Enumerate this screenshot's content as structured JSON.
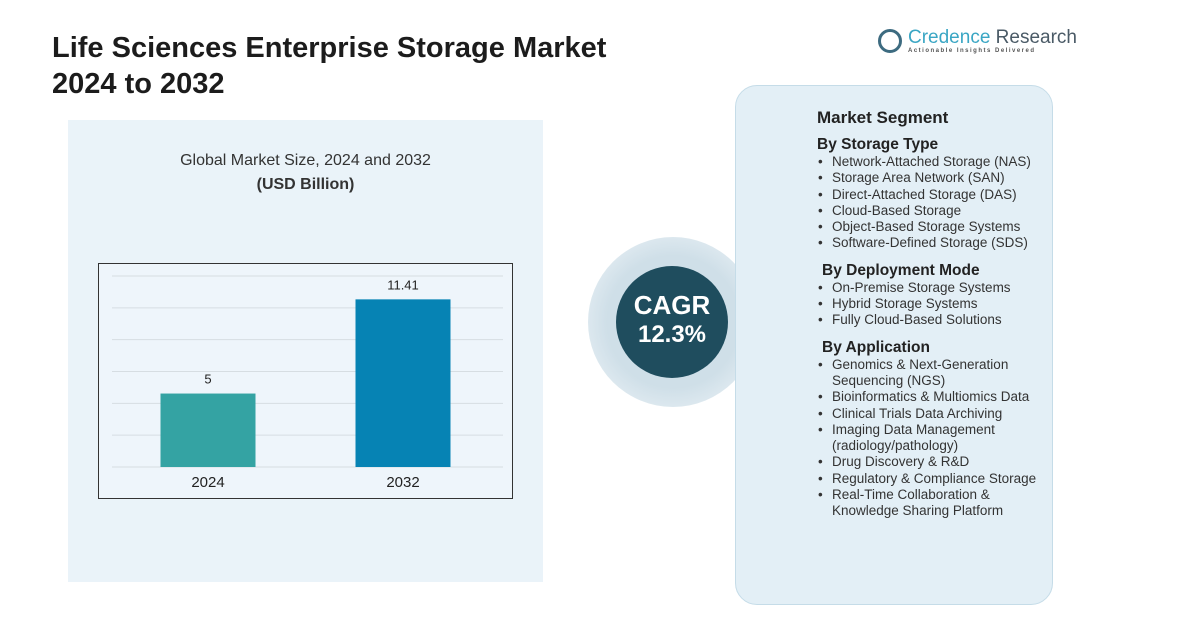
{
  "title_line1": "Life Sciences Enterprise Storage Market",
  "title_line2": "2024  to 2032",
  "logo": {
    "name_a": "Credence",
    "name_b": " Research",
    "tagline": "Actionable Insights Delivered"
  },
  "chart_data": {
    "type": "bar",
    "title": "Global Market Size, 2024 and 2032",
    "subtitle": "(USD Billion)",
    "categories": [
      "2024",
      "2032"
    ],
    "values": [
      5,
      11.41
    ],
    "value_labels": [
      "5",
      "11.41"
    ],
    "colors": [
      "#34a3a3",
      "#0683b4"
    ],
    "ylim": [
      0,
      13
    ],
    "grid": true,
    "legend": "none"
  },
  "cagr": {
    "label": "CAGR",
    "value": "12.3%"
  },
  "segment": {
    "title": "Market Segment",
    "groups": [
      {
        "title": "By Storage Type",
        "items": [
          "Network-Attached Storage (NAS)",
          "Storage Area Network (SAN)",
          "Direct-Attached Storage (DAS)",
          "Cloud-Based Storage",
          "Object-Based Storage Systems",
          "Software-Defined Storage (SDS)"
        ]
      },
      {
        "title": "By Deployment Mode",
        "items": [
          "On-Premise Storage Systems",
          "Hybrid Storage Systems",
          "Fully Cloud-Based Solutions"
        ]
      },
      {
        "title": "By Application",
        "items": [
          "Genomics & Next-Generation Sequencing (NGS)",
          "Bioinformatics & Multiomics Data",
          "Clinical Trials Data Archiving",
          "Imaging Data Management (radiology/pathology)",
          "Drug Discovery & R&D",
          "Regulatory & Compliance Storage",
          "Real-Time Collaboration & Knowledge Sharing Platform"
        ]
      }
    ]
  }
}
